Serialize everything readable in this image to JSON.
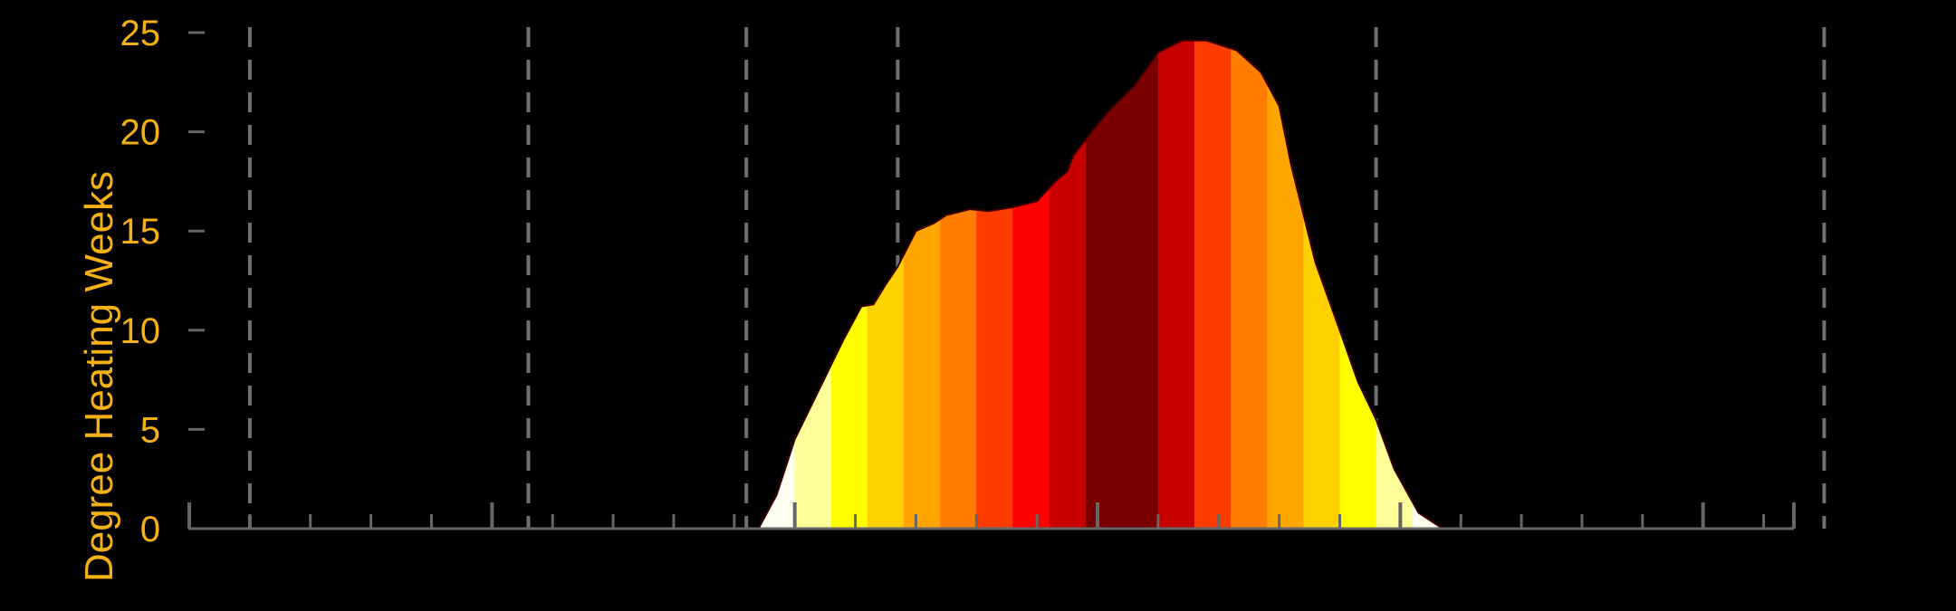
{
  "chart_data": {
    "type": "area",
    "ylabel": "Degree Heating Weeks",
    "ylim": [
      0,
      25
    ],
    "yticks": [
      "0",
      "5",
      "10",
      "15",
      "20",
      "25"
    ],
    "xlim": [
      0,
      26.5
    ],
    "x_major_ticks": [
      0,
      5,
      10,
      15,
      20,
      25,
      26.5
    ],
    "x_minor_ticks": [
      1,
      2,
      3,
      4,
      6,
      7,
      8,
      9,
      11,
      12,
      13,
      14,
      16,
      17,
      18,
      19,
      21,
      22,
      23,
      24,
      26
    ],
    "x_unit": "week",
    "vertical_markers": [
      1,
      5.6,
      9.2,
      11.7,
      19.6,
      27.0
    ],
    "x": [
      9.4,
      9.7,
      10.0,
      10.4,
      10.8,
      11.1,
      11.3,
      11.5,
      11.7,
      12.0,
      12.3,
      12.5,
      12.9,
      13.2,
      13.6,
      14.0,
      14.3,
      14.5,
      14.6,
      14.9,
      15.2,
      15.6,
      16.0,
      16.4,
      16.8,
      17.3,
      17.7,
      18.0,
      18.2,
      18.6,
      19.0,
      19.3,
      19.6,
      19.9,
      20.3,
      20.7,
      20.8
    ],
    "y": [
      0,
      1.7,
      4.5,
      7.0,
      9.5,
      11.2,
      11.3,
      12.3,
      13.2,
      15.0,
      15.4,
      15.8,
      16.1,
      16.0,
      16.2,
      16.5,
      17.5,
      18.0,
      18.8,
      20.0,
      21.1,
      22.3,
      24.0,
      24.6,
      24.6,
      24.1,
      23.0,
      21.3,
      18.3,
      13.4,
      10.0,
      7.4,
      5.5,
      3.0,
      0.8,
      0,
      0
    ],
    "color_bands": [
      "#fffff0",
      "#ffff9a",
      "#ffff00",
      "#ffd000",
      "#ffa500",
      "#ff7d00",
      "#ff3c00",
      "#ff0000",
      "#c80000",
      "#7a0000",
      "#7a0000",
      "#c80000",
      "#ff3c00",
      "#ff7d00",
      "#ffa500",
      "#ffd000",
      "#ffff00",
      "#ffff9a",
      "#fffff0"
    ],
    "colors": {
      "background": "#000000",
      "axis": "#666666",
      "tick_label": "#f5b114",
      "marker_line": "#707070",
      "outline": "#3a0000"
    },
    "grid": false
  }
}
